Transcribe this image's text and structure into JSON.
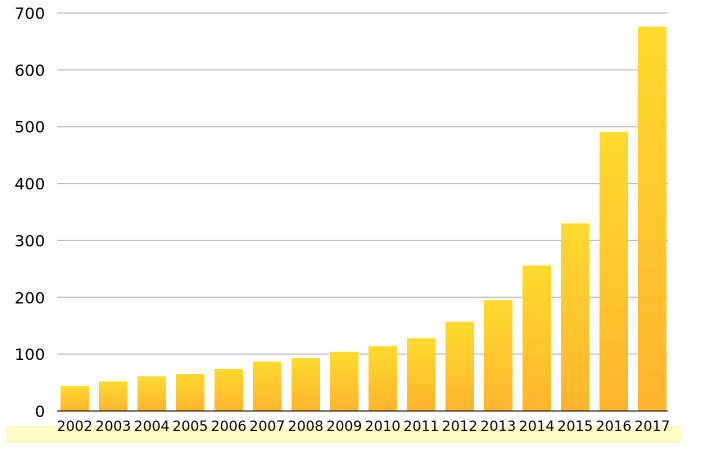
{
  "chart_data": {
    "type": "bar",
    "categories": [
      "2002",
      "2003",
      "2004",
      "2005",
      "2006",
      "2007",
      "2008",
      "2009",
      "2010",
      "2011",
      "2012",
      "2013",
      "2014",
      "2015",
      "2016",
      "2017"
    ],
    "values": [
      44,
      52,
      61,
      65,
      74,
      87,
      93,
      104,
      114,
      128,
      157,
      195,
      256,
      330,
      491,
      676
    ],
    "ylim": [
      0,
      700
    ],
    "yticks": [
      0,
      100,
      200,
      300,
      400,
      500,
      600,
      700
    ],
    "grid": true,
    "colors": {
      "bar_top": "#FFDA2E",
      "bar_bottom": "#FFB52E",
      "band": "#FFFBC4",
      "grid": "#B4B4B4",
      "axis": "#000000"
    }
  }
}
